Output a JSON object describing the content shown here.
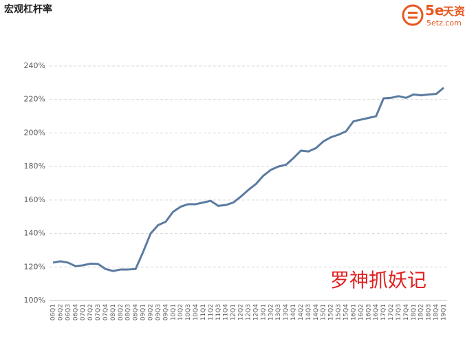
{
  "chart_data": {
    "type": "line",
    "title": "宏观杠杆率",
    "annotations": [
      "罗神抓妖记"
    ],
    "logo": {
      "brand": "5e",
      "name": "天资",
      "site": "5etz.com"
    },
    "categories": [
      "06Q1",
      "06Q2",
      "06Q3",
      "06Q4",
      "07Q1",
      "07Q2",
      "07Q3",
      "07Q4",
      "08Q1",
      "08Q2",
      "08Q3",
      "08Q4",
      "09Q1",
      "09Q2",
      "09Q3",
      "09Q4",
      "10Q1",
      "10Q2",
      "10Q3",
      "10Q4",
      "11Q1",
      "11Q2",
      "11Q3",
      "11Q4",
      "12Q1",
      "12Q2",
      "12Q3",
      "12Q4",
      "13Q1",
      "13Q2",
      "13Q3",
      "13Q4",
      "14Q1",
      "14Q2",
      "14Q3",
      "14Q4",
      "15Q1",
      "15Q2",
      "15Q3",
      "15Q4",
      "16Q1",
      "16Q2",
      "16Q3",
      "16Q4",
      "17Q1",
      "17Q2",
      "17Q3",
      "17Q4",
      "18Q1",
      "18Q2",
      "18Q3",
      "18Q4",
      "19Q1"
    ],
    "series": [
      {
        "name": "宏观杠杆率",
        "color": "#5b7ba0",
        "values": [
          122.6,
          123.4,
          122.6,
          120.5,
          121,
          122,
          121.8,
          118.8,
          117.6,
          118.5,
          118.5,
          118.8,
          129,
          140,
          145,
          147,
          153,
          156,
          157.5,
          157.5,
          158.5,
          159.5,
          156.5,
          157,
          158.5,
          162,
          166,
          169.5,
          174.5,
          178,
          180,
          181,
          185,
          189.5,
          189,
          191,
          195,
          197.5,
          199,
          201,
          207,
          208,
          209,
          210,
          220.7,
          221,
          222,
          221,
          223,
          222.5,
          223,
          223.3,
          227
        ]
      }
    ],
    "ylim": [
      100,
      240
    ],
    "yticks": [
      {
        "value": 100,
        "label": "100%"
      },
      {
        "value": 120,
        "label": "120%"
      },
      {
        "value": 140,
        "label": "140%"
      },
      {
        "value": 160,
        "label": "160%"
      },
      {
        "value": 180,
        "label": "180%"
      },
      {
        "value": 200,
        "label": "200%"
      },
      {
        "value": 220,
        "label": "220%"
      },
      {
        "value": 240,
        "label": "240%"
      }
    ],
    "grid": true
  }
}
